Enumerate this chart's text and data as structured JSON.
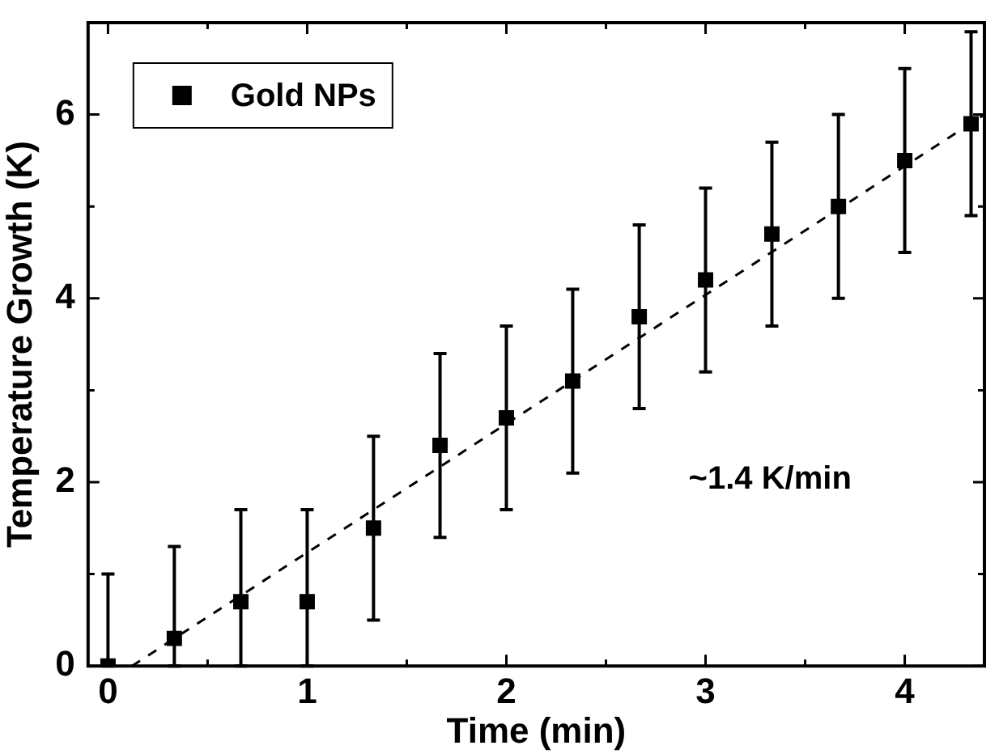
{
  "chart_data": {
    "type": "scatter",
    "xlabel": "Time (min)",
    "ylabel": "Temperature Growth (K)",
    "xlim": [
      -0.1,
      4.4
    ],
    "xticks": [
      0,
      {
        "value": 0.5,
        "label": null
      },
      1,
      {
        "value": 1.5,
        "label": null
      },
      2,
      {
        "value": 2.5,
        "label": null
      },
      3,
      {
        "value": 3.5,
        "label": null
      },
      4
    ],
    "ylim": [
      0,
      7
    ],
    "yticks": [
      0,
      {
        "value": 1,
        "label": null
      },
      2,
      {
        "value": 3,
        "label": null
      },
      4,
      {
        "value": 5,
        "label": null
      },
      6
    ],
    "grid": false,
    "legend": "top left",
    "marker": "square",
    "annotations": [
      "~1.4 K/min"
    ],
    "series": [
      {
        "name": "Gold NPs",
        "color": "#000000",
        "x": [
          0,
          0.333,
          0.667,
          1,
          1.333,
          1.667,
          2,
          2.333,
          2.667,
          3,
          3.333,
          3.667,
          4,
          4.333
        ],
        "values": [
          0,
          0.3,
          0.7,
          0.7,
          1.5,
          2.4,
          2.7,
          3.1,
          3.8,
          4.2,
          4.7,
          5.0,
          5.5,
          5.9
        ],
        "errors": [
          [
            0,
            1
          ],
          [
            0,
            1.3
          ],
          [
            0,
            1.7
          ],
          [
            0,
            1.7
          ],
          1,
          1,
          1,
          1,
          1,
          1,
          1,
          1,
          1,
          1
        ]
      },
      {
        "type": "line",
        "color": "#000000",
        "line_style": "dashed",
        "marker": "none",
        "x": [
          0.12,
          4.4
        ],
        "values": [
          0,
          6.0
        ]
      }
    ]
  }
}
